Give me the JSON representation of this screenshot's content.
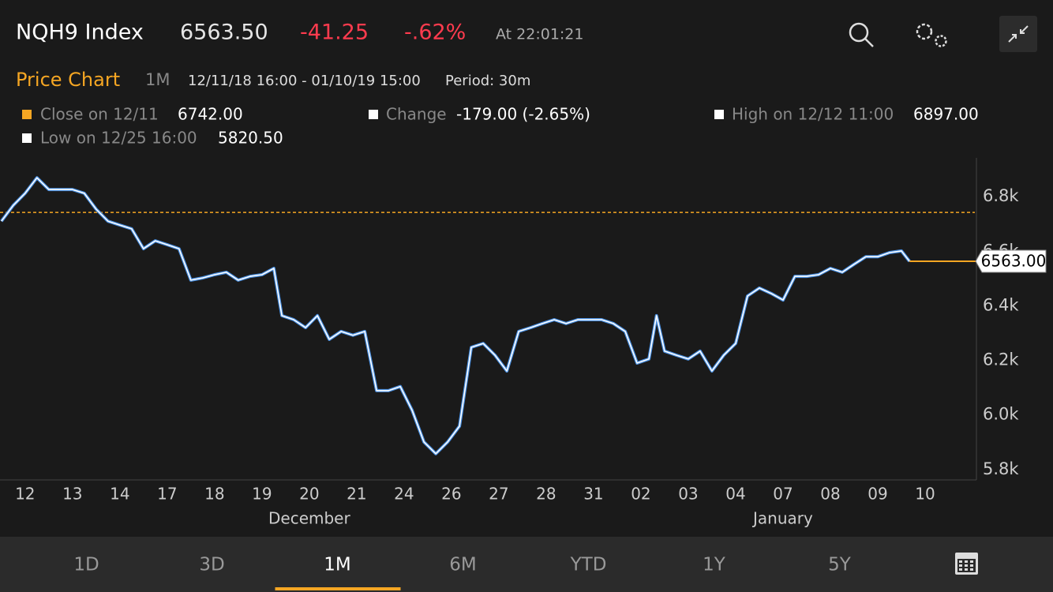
{
  "header": {
    "symbol": "NQH9 Index",
    "price": "6563.50",
    "change": "-41.25",
    "change_pct": "-.62%",
    "time": "At 22:01:21"
  },
  "subheader": {
    "title": "Price Chart",
    "range": "1M",
    "dates": "12/11/18 16:00 - 01/10/19 15:00",
    "period": "Period: 30m"
  },
  "legend": {
    "change_label": "Change",
    "change_value": "-179.00 (-2.65%)",
    "high_label": "High on 12/12 11:00",
    "high_value": "6897.00",
    "low_label": "Low on 12/25 16:00",
    "low_value": "5820.50"
  },
  "chart_data": {
    "type": "line",
    "close_line": {
      "label": "Close on 12/11",
      "value": 6742,
      "value_label": "6742.00",
      "color": "#f5a623"
    },
    "last_price": {
      "value": 6563,
      "label": "6563.00",
      "color": "#f5a623"
    },
    "series": [
      {
        "color": "#ffffff",
        "edge_color": "#4a90e2",
        "x": [
          -0.5,
          -0.25,
          0,
          0.25,
          0.5,
          0.75,
          1,
          1.25,
          1.5,
          1.75,
          2,
          2.25,
          2.5,
          2.75,
          3,
          3.25,
          3.5,
          3.75,
          4,
          4.25,
          4.5,
          4.75,
          5,
          5.25,
          5.42,
          5.67,
          5.92,
          6.17,
          6.42,
          6.67,
          6.92,
          7.17,
          7.42,
          7.67,
          7.92,
          8.17,
          8.42,
          8.67,
          8.92,
          9.17,
          9.42,
          9.67,
          9.92,
          10.17,
          10.42,
          10.67,
          10.92,
          11.17,
          11.42,
          11.67,
          11.92,
          12.17,
          12.42,
          12.67,
          12.92,
          13.17,
          13.33,
          13.5,
          13.75,
          14,
          14.25,
          14.5,
          14.75,
          15,
          15.25,
          15.5,
          15.75,
          16,
          16.25,
          16.5,
          16.75,
          17,
          17.25,
          17.5,
          17.75,
          18,
          18.25,
          18.5,
          18.67
        ],
        "values": [
          6710,
          6768,
          6812,
          6869,
          6826,
          6826,
          6826,
          6812,
          6754,
          6710,
          6696,
          6682,
          6609,
          6638,
          6624,
          6609,
          6494,
          6502,
          6514,
          6523,
          6494,
          6508,
          6514,
          6537,
          6364,
          6349,
          6320,
          6364,
          6277,
          6306,
          6292,
          6306,
          6089,
          6089,
          6104,
          6017,
          5901,
          5858,
          5901,
          5959,
          6248,
          6262,
          6219,
          6161,
          6306,
          6320,
          6335,
          6349,
          6335,
          6349,
          6349,
          6349,
          6335,
          6306,
          6190,
          6205,
          6364,
          6234,
          6219,
          6205,
          6234,
          6161,
          6219,
          6262,
          6436,
          6465,
          6445,
          6421,
          6508,
          6508,
          6514,
          6537,
          6523,
          6552,
          6580,
          6580,
          6595,
          6601,
          6563
        ]
      }
    ],
    "xlim": [
      -0.53,
      20.05
    ],
    "ylim": [
      5762,
      6942
    ],
    "xticks": [
      {
        "value": 0,
        "label": "12"
      },
      {
        "value": 1,
        "label": "13"
      },
      {
        "value": 2,
        "label": "14"
      },
      {
        "value": 3,
        "label": "17"
      },
      {
        "value": 4,
        "label": "18"
      },
      {
        "value": 5,
        "label": "19"
      },
      {
        "value": 6,
        "label": "20"
      },
      {
        "value": 7,
        "label": "21"
      },
      {
        "value": 8,
        "label": "24"
      },
      {
        "value": 9,
        "label": "26"
      },
      {
        "value": 10,
        "label": "27"
      },
      {
        "value": 11,
        "label": "28"
      },
      {
        "value": 12,
        "label": "31"
      },
      {
        "value": 13,
        "label": "02"
      },
      {
        "value": 14,
        "label": "03"
      },
      {
        "value": 15,
        "label": "04"
      },
      {
        "value": 16,
        "label": "07"
      },
      {
        "value": 17,
        "label": "08"
      },
      {
        "value": 18,
        "label": "09"
      },
      {
        "value": 19,
        "label": "10"
      }
    ],
    "months": [
      {
        "value": 6,
        "label": "December"
      },
      {
        "value": 16,
        "label": "January"
      }
    ],
    "yticks": [
      {
        "value": 5800,
        "label": "5.8k"
      },
      {
        "value": 6000,
        "label": "6.0k"
      },
      {
        "value": 6200,
        "label": "6.2k"
      },
      {
        "value": 6400,
        "label": "6.4k"
      },
      {
        "value": 6600,
        "label": "6.6k"
      },
      {
        "value": 6800,
        "label": "6.8k"
      }
    ]
  },
  "tabs": {
    "items": [
      "1D",
      "3D",
      "1M",
      "6M",
      "YTD",
      "1Y",
      "5Y"
    ],
    "active": 2
  }
}
